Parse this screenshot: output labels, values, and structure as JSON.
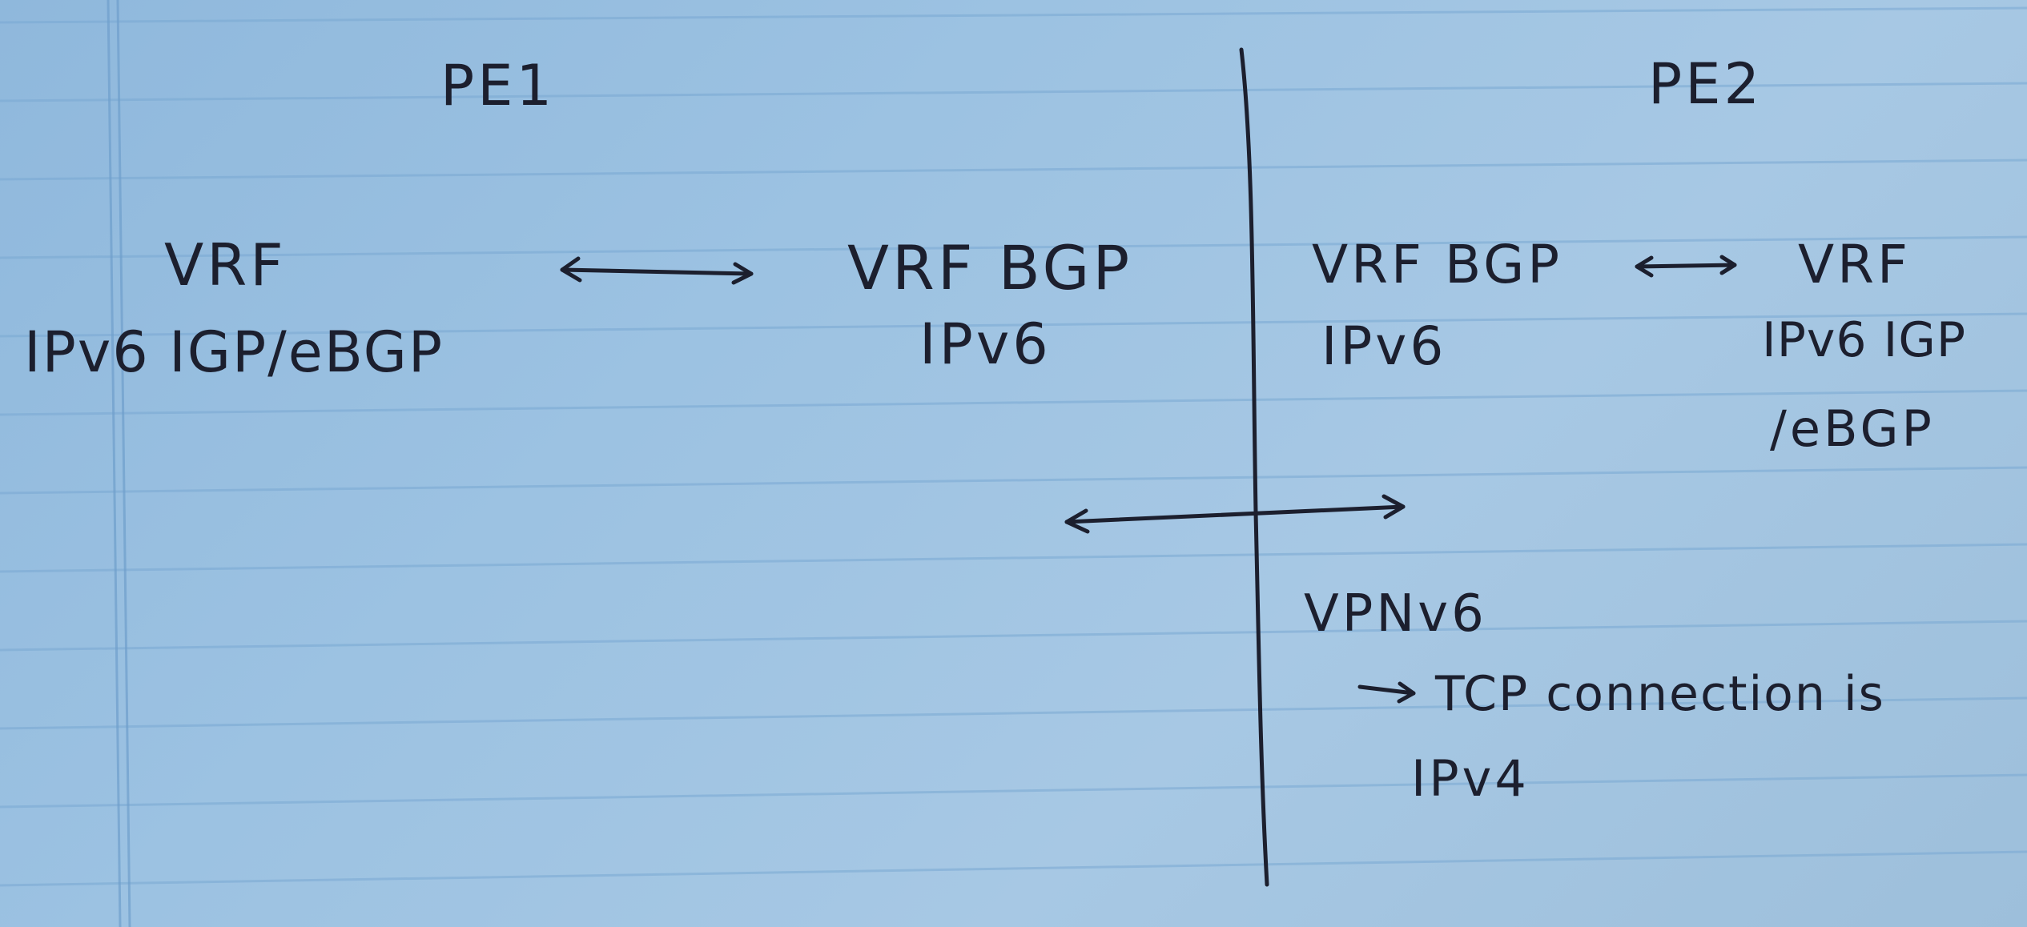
{
  "diagram": {
    "left_side": {
      "title": "PE1",
      "vrf_label": "VRF",
      "vrf_protocols": "IPv6 IGP/eBGP",
      "vrf_bgp_label": "VRF BGP",
      "vrf_bgp_af": "IPv6"
    },
    "right_side": {
      "title": "PE2",
      "vrf_bgp_label": "VRF BGP",
      "vrf_bgp_af": "IPv6",
      "vrf_label": "VRF",
      "vrf_protocols_line1": "IPv6 IGP",
      "vrf_protocols_line2": "/eBGP"
    },
    "session": {
      "label": "VPNv6",
      "note_line1": "TCP connection is",
      "note_line2": "IPv4"
    },
    "colors": {
      "paper": "#9cc2e2",
      "rule_line": "#7aa9d3",
      "margin_line": "#6f9fcc",
      "ink": "#1c1f2e"
    }
  }
}
